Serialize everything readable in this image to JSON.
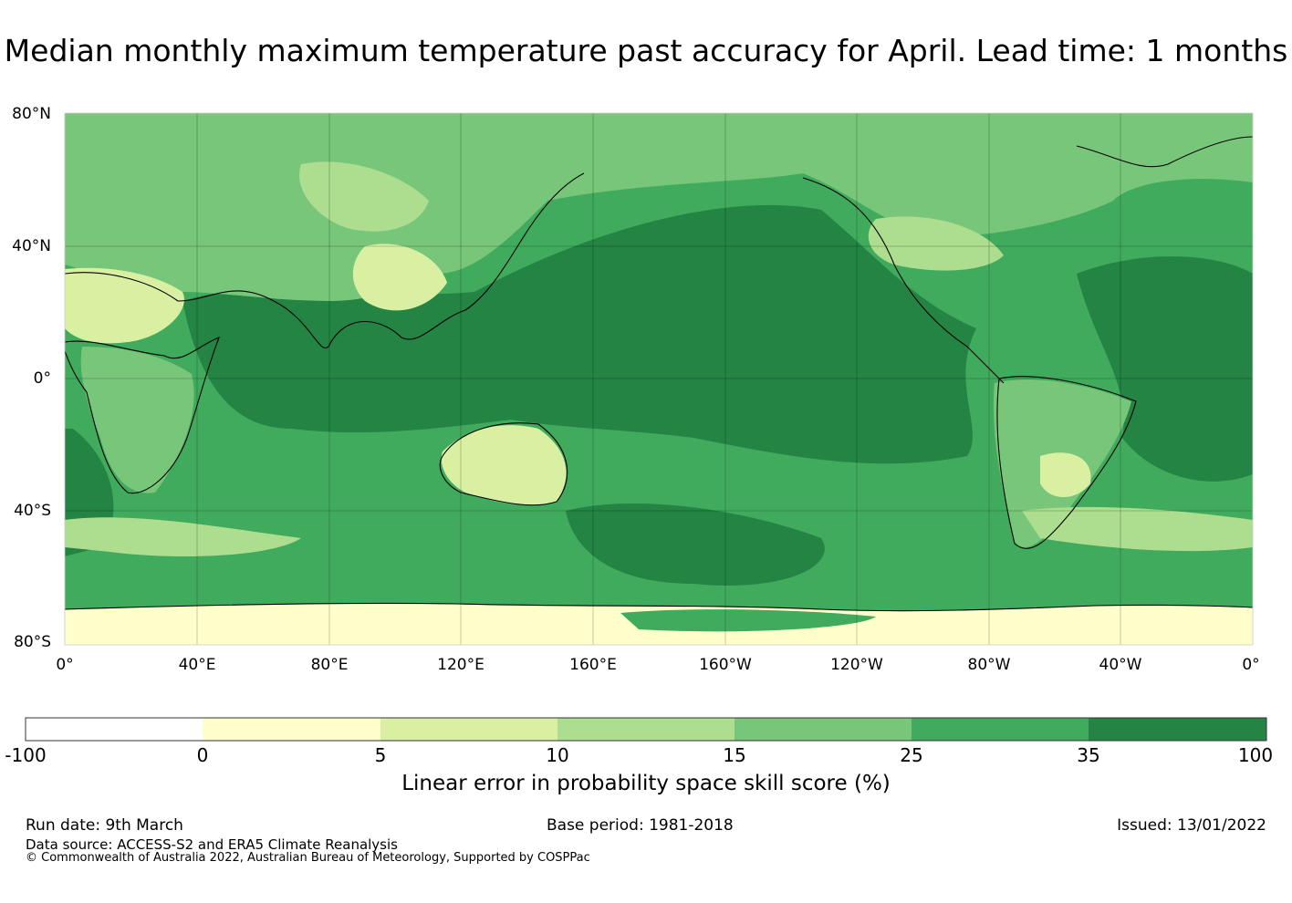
{
  "title": "Median monthly maximum temperature past accuracy for April. Lead time: 1 months",
  "map": {
    "lat_labels": [
      "80°N",
      "40°N",
      "0°",
      "40°S",
      "80°S"
    ],
    "lon_labels": [
      "0°",
      "40°E",
      "80°E",
      "120°E",
      "160°E",
      "160°W",
      "120°W",
      "80°W",
      "40°W",
      "0°"
    ],
    "ocean_high_color": "#238443",
    "land_low_color": "#ffffcc"
  },
  "colorbar": {
    "title": "Linear error in probability space skill score (%)",
    "ticks": [
      "-100",
      "0",
      "5",
      "10",
      "15",
      "25",
      "35",
      "100"
    ],
    "colors": [
      "#ffffff",
      "#ffffcc",
      "#d9f0a3",
      "#addd8e",
      "#78c679",
      "#41ab5d",
      "#238443"
    ]
  },
  "footer": {
    "run_date": "Run date: 9th March",
    "base_period": "Base period: 1981-2018",
    "issued": "Issued: 13/01/2022",
    "data_source": "Data source: ACCESS-S2 and ERA5 Climate Reanalysis",
    "copyright": "© Commonwealth of Australia 2022, Australian Bureau of Meteorology, Supported by COSPPac"
  }
}
